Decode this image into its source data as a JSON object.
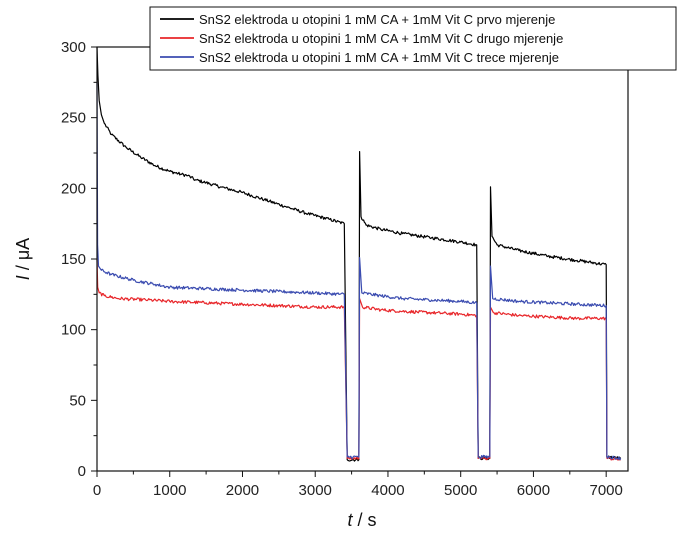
{
  "chart_data": {
    "type": "line",
    "xlabel_italic": "t",
    "xlabel_rest": " / s",
    "ylabel_italic": "I",
    "ylabel_rest": " / μA",
    "xlim": [
      0,
      7300
    ],
    "ylim": [
      0,
      300
    ],
    "x_ticks": [
      0,
      1000,
      2000,
      3000,
      4000,
      5000,
      6000,
      7000
    ],
    "y_ticks": [
      0,
      50,
      100,
      150,
      200,
      250,
      300
    ],
    "legend_position": "top-right",
    "series": [
      {
        "name": "SnS2 elektroda u otopini 1 mM CA + 1mM Vit C prvo mjerenje",
        "color": "#000000",
        "points": [
          [
            0,
            300
          ],
          [
            12,
            280
          ],
          [
            30,
            262
          ],
          [
            60,
            252
          ],
          [
            100,
            246
          ],
          [
            200,
            238
          ],
          [
            400,
            229
          ],
          [
            600,
            222
          ],
          [
            800,
            216
          ],
          [
            1000,
            212
          ],
          [
            1150,
            210
          ],
          [
            1250,
            209
          ],
          [
            1350,
            206
          ],
          [
            1500,
            204
          ],
          [
            1700,
            201
          ],
          [
            2000,
            197
          ],
          [
            2300,
            192
          ],
          [
            2600,
            187
          ],
          [
            2900,
            182
          ],
          [
            3200,
            178
          ],
          [
            3400,
            175
          ],
          [
            3440,
            8
          ],
          [
            3600,
            8
          ],
          [
            3610,
            226
          ],
          [
            3630,
            180
          ],
          [
            3700,
            174
          ],
          [
            3900,
            171
          ],
          [
            4200,
            168
          ],
          [
            4600,
            165
          ],
          [
            5000,
            162
          ],
          [
            5220,
            160
          ],
          [
            5240,
            9
          ],
          [
            5400,
            9
          ],
          [
            5410,
            201
          ],
          [
            5430,
            166
          ],
          [
            5500,
            160
          ],
          [
            5800,
            156
          ],
          [
            6200,
            152
          ],
          [
            6600,
            149
          ],
          [
            7000,
            146
          ],
          [
            7010,
            10
          ],
          [
            7200,
            9
          ]
        ]
      },
      {
        "name": "SnS2 elektroda u otopini 1 mM CA + 1mM Vit C drugo mjerenje",
        "color": "#e8262a",
        "points": [
          [
            0,
            150
          ],
          [
            10,
            130
          ],
          [
            30,
            126
          ],
          [
            100,
            124
          ],
          [
            300,
            122
          ],
          [
            700,
            121
          ],
          [
            1000,
            120
          ],
          [
            1500,
            119
          ],
          [
            2000,
            118
          ],
          [
            2500,
            117
          ],
          [
            3000,
            116
          ],
          [
            3400,
            116
          ],
          [
            3440,
            9
          ],
          [
            3600,
            9
          ],
          [
            3610,
            122
          ],
          [
            3650,
            116
          ],
          [
            3900,
            114
          ],
          [
            4200,
            113
          ],
          [
            4600,
            112
          ],
          [
            5000,
            111
          ],
          [
            5220,
            110
          ],
          [
            5240,
            9
          ],
          [
            5400,
            9
          ],
          [
            5410,
            116
          ],
          [
            5450,
            112
          ],
          [
            5800,
            110
          ],
          [
            6200,
            109
          ],
          [
            6600,
            108
          ],
          [
            7000,
            108
          ],
          [
            7010,
            9
          ],
          [
            7200,
            8
          ]
        ]
      },
      {
        "name": "SnS2 elektroda u otopini 1 mM CA + 1mM Vit C trece mjerenje",
        "color": "#3b4cb0",
        "points": [
          [
            0,
            275
          ],
          [
            8,
            160
          ],
          [
            20,
            145
          ],
          [
            60,
            142
          ],
          [
            200,
            139
          ],
          [
            500,
            135
          ],
          [
            800,
            132
          ],
          [
            1000,
            130
          ],
          [
            1500,
            129
          ],
          [
            2000,
            128
          ],
          [
            2500,
            127
          ],
          [
            3000,
            126
          ],
          [
            3400,
            125
          ],
          [
            3440,
            10
          ],
          [
            3600,
            10
          ],
          [
            3610,
            151
          ],
          [
            3640,
            126
          ],
          [
            3900,
            124
          ],
          [
            4200,
            122
          ],
          [
            4600,
            121
          ],
          [
            5000,
            120
          ],
          [
            5220,
            119
          ],
          [
            5240,
            10
          ],
          [
            5400,
            10
          ],
          [
            5410,
            145
          ],
          [
            5440,
            122
          ],
          [
            5800,
            120
          ],
          [
            6200,
            119
          ],
          [
            6600,
            118
          ],
          [
            7000,
            117
          ],
          [
            7010,
            10
          ],
          [
            7200,
            9
          ]
        ]
      }
    ]
  }
}
